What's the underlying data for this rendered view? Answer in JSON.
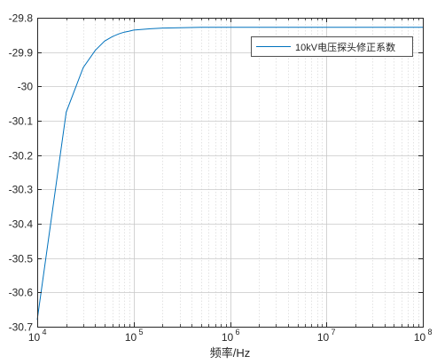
{
  "chart_data": {
    "type": "line",
    "xscale": "log",
    "xlim": [
      10000,
      100000000
    ],
    "ylim": [
      -30.7,
      -29.8
    ],
    "grid": true,
    "minor_grid_x": true,
    "legend_position": "top-right",
    "xlabel": "频率/Hz",
    "ylabel": "",
    "title": "",
    "x_ticks": [
      10000,
      100000,
      1000000,
      10000000,
      100000000
    ],
    "x_tick_labels": [
      {
        "base": "10",
        "exp": "4"
      },
      {
        "base": "10",
        "exp": "5"
      },
      {
        "base": "10",
        "exp": "6"
      },
      {
        "base": "10",
        "exp": "7"
      },
      {
        "base": "10",
        "exp": "8"
      }
    ],
    "y_ticks": [
      -29.8,
      -29.9,
      -30,
      -30.1,
      -30.2,
      -30.3,
      -30.4,
      -30.5,
      -30.6,
      -30.7
    ],
    "y_tick_labels": [
      "-29.8",
      "-29.9",
      "-30",
      "-30.1",
      "-30.2",
      "-30.3",
      "-30.4",
      "-30.5",
      "-30.6",
      "-30.7"
    ],
    "series": [
      {
        "name": "10kV电压探头修正系数",
        "color": "#0072BD",
        "x": [
          10000,
          20000,
          30000,
          40000,
          50000,
          60000,
          70000,
          80000,
          90000,
          100000,
          150000,
          200000,
          300000,
          500000,
          1000000,
          2000000,
          5000000,
          10000000,
          100000000
        ],
        "y": [
          -30.68,
          -30.075,
          -29.945,
          -29.895,
          -29.868,
          -29.855,
          -29.847,
          -29.842,
          -29.839,
          -29.836,
          -29.832,
          -29.83,
          -29.829,
          -29.828,
          -29.828,
          -29.828,
          -29.828,
          -29.828,
          -29.828
        ]
      }
    ]
  }
}
